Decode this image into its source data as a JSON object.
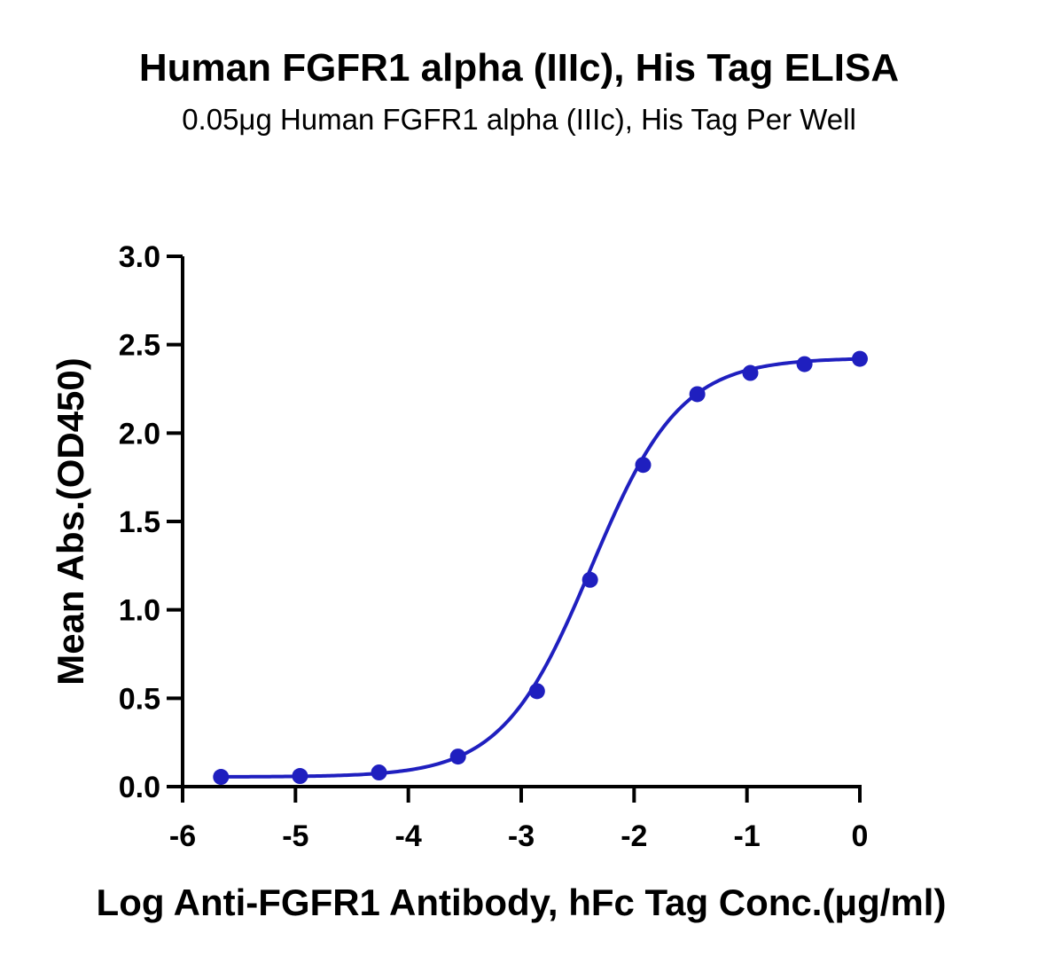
{
  "header": {
    "title": "Human FGFR1 alpha (IIIc), His Tag ELISA",
    "subtitle": "0.05μg Human FGFR1 alpha (IIIc), His Tag Per Well"
  },
  "chart_data": {
    "type": "scatter",
    "title": "Human FGFR1 alpha (IIIc), His Tag ELISA",
    "subtitle": "0.05μg Human FGFR1 alpha (IIIc), His Tag Per Well",
    "xlabel": "Log Anti-FGFR1 Antibody, hFc Tag Conc.(μg/ml)",
    "ylabel": "Mean Abs.(OD450)",
    "xlim": [
      -6,
      0
    ],
    "ylim": [
      0,
      3.0
    ],
    "xticks": [
      "-6",
      "-5",
      "-4",
      "-3",
      "-2",
      "-1",
      "0"
    ],
    "yticks": [
      "0.0",
      "0.5",
      "1.0",
      "1.5",
      "2.0",
      "2.5",
      "3.0"
    ],
    "grid": false,
    "color": "#1f1fbf",
    "series": [
      {
        "x": [
          -5.66,
          -4.96,
          -4.26,
          -3.56,
          -2.86,
          -2.39,
          -1.92,
          -1.44,
          -0.97,
          -0.49,
          0.0
        ],
        "y": [
          0.055,
          0.06,
          0.08,
          0.17,
          0.54,
          1.17,
          1.82,
          2.22,
          2.34,
          2.39,
          2.42
        ]
      }
    ],
    "fit_curve": {
      "model": "4PL",
      "bottom": 0.055,
      "top": 2.425,
      "logEC50": -2.38,
      "hill": 1.1
    }
  }
}
